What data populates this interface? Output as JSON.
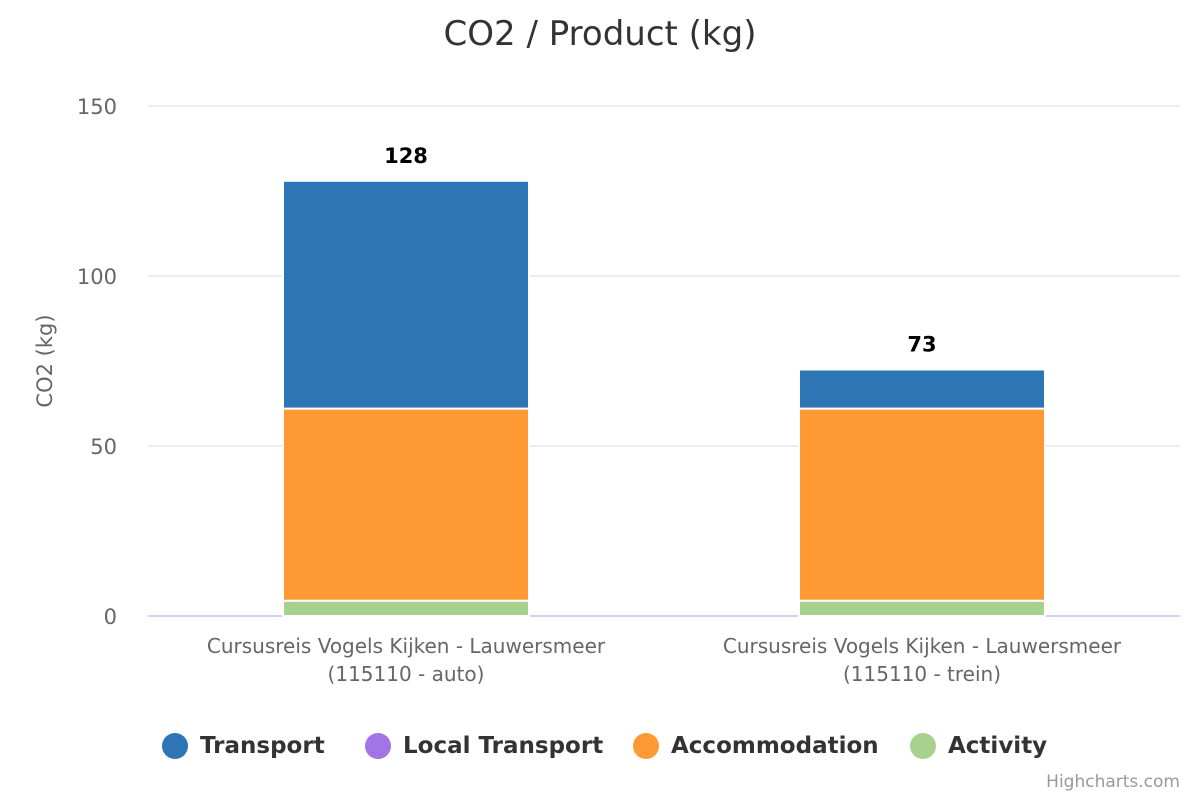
{
  "chart_data": {
    "type": "bar",
    "stacked": true,
    "title": "CO2 / Product (kg)",
    "xlabel": "",
    "ylabel": "CO2 (kg)",
    "ylim": [
      0,
      150
    ],
    "yticks": [
      0,
      50,
      100,
      150
    ],
    "grid": true,
    "categories": [
      [
        "Cursusreis Vogels Kijken - Lauwersmeer",
        "(115110 - auto)"
      ],
      [
        "Cursusreis Vogels Kijken - Lauwersmeer",
        "(115110 - trein)"
      ]
    ],
    "series": [
      {
        "name": "Transport",
        "color": "#2e75b6",
        "values": [
          67,
          11.5
        ]
      },
      {
        "name": "Local Transport",
        "color": "#a275e6",
        "values": [
          0,
          0
        ]
      },
      {
        "name": "Accommodation",
        "color": "#ff9933",
        "values": [
          56.5,
          56.5
        ]
      },
      {
        "name": "Activity",
        "color": "#a9d18e",
        "values": [
          4.5,
          4.5
        ]
      }
    ],
    "totals": [
      "128",
      "73"
    ],
    "legend_position": "bottom"
  },
  "credits": "Highcharts.com"
}
